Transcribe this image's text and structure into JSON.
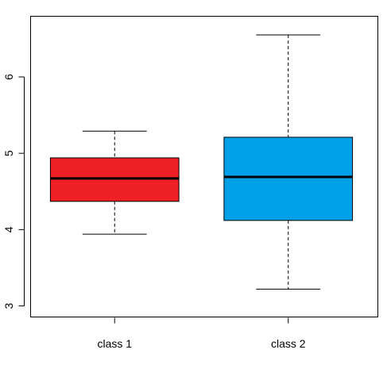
{
  "chart_data": {
    "type": "boxplot",
    "title": "",
    "xlabel": "",
    "ylabel": "",
    "ylim": [
      2.85,
      6.8
    ],
    "y_ticks": [
      3,
      4,
      5,
      6
    ],
    "grid": false,
    "categories": [
      "class 1",
      "class 2"
    ],
    "boxes": [
      {
        "label": "class 1",
        "whisker_low": 3.94,
        "q1": 4.37,
        "median": 4.67,
        "q3": 4.94,
        "whisker_high": 5.29,
        "color": "#EE2026"
      },
      {
        "label": "class 2",
        "whisker_low": 3.22,
        "q1": 4.12,
        "median": 4.69,
        "q3": 5.21,
        "whisker_high": 6.55,
        "color": "#00A0E9"
      }
    ]
  }
}
